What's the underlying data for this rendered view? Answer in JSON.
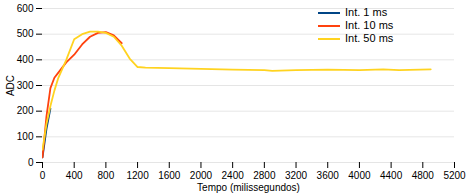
{
  "chart_data": {
    "type": "line",
    "x_label": "Tempo (milissegundos)",
    "y_label": "ADC",
    "x": [
      0,
      50,
      100,
      150,
      200,
      300,
      400,
      500,
      600,
      700,
      800,
      900,
      1000,
      1100,
      1200,
      1300,
      1600,
      2000,
      2400,
      2800,
      2900,
      3200,
      3600,
      4000,
      4300,
      4500,
      4900
    ],
    "series": [
      {
        "name": "Int. 1 ms",
        "color": "#004586",
        "values": [
          20,
          130,
          210,
          null,
          null,
          null,
          null,
          null,
          null,
          null,
          null,
          null,
          null,
          null,
          null,
          null,
          null,
          null,
          null,
          null,
          null,
          null,
          null,
          null,
          null,
          null,
          null
        ]
      },
      {
        "name": "Int. 10 ms",
        "color": "#ff420e",
        "values": [
          20,
          180,
          290,
          330,
          350,
          390,
          420,
          460,
          490,
          505,
          508,
          495,
          465,
          null,
          null,
          null,
          null,
          null,
          null,
          null,
          null,
          null,
          null,
          null,
          null,
          null,
          null
        ]
      },
      {
        "name": "Int. 50 ms",
        "color": "#ffd320",
        "values": [
          50,
          150,
          220,
          280,
          330,
          400,
          480,
          500,
          510,
          510,
          505,
          490,
          455,
          405,
          372,
          370,
          368,
          365,
          362,
          360,
          357,
          360,
          362,
          360,
          363,
          360,
          363
        ]
      }
    ],
    "xlim": [
      0,
      5200
    ],
    "xticks": [
      0,
      400,
      800,
      1200,
      1600,
      2000,
      2400,
      2800,
      3200,
      3600,
      4000,
      4400,
      4800,
      5200
    ],
    "ylim": [
      0,
      600
    ],
    "yticks": [
      0,
      100,
      200,
      300,
      400,
      500,
      600
    ],
    "grid": true,
    "legend": "top-right"
  }
}
